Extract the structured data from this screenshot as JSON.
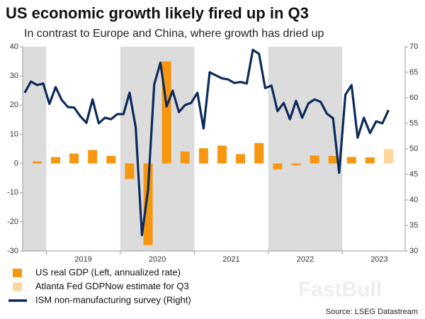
{
  "chart_data": {
    "type": "combo",
    "title": "US economic growth likely fired up in Q3",
    "subtitle": "In contrast to Europe and China, where growth has dried up",
    "source": "Source: LSEG Datastream",
    "watermark": "FastBull",
    "xlim": [
      2018.68,
      2023.85
    ],
    "xticks": [
      {
        "value": 2019,
        "label": "2019"
      },
      {
        "value": 2020,
        "label": "2020"
      },
      {
        "value": 2021,
        "label": "2021"
      },
      {
        "value": 2022,
        "label": "2022"
      },
      {
        "value": 2023,
        "label": "2023"
      }
    ],
    "ylim": [
      -30,
      40
    ],
    "yticks": [
      -30,
      -20,
      -10,
      0,
      10,
      20,
      30,
      40
    ],
    "y2lim": [
      30,
      70
    ],
    "y2ticks": [
      30,
      35,
      40,
      45,
      50,
      55,
      60,
      65,
      70
    ],
    "shading": "#dcdcdc",
    "series": [
      {
        "name": "US real GDP (Left, annualized rate)",
        "type": "bar",
        "color": "#f7960f",
        "x": [
          2018.875,
          2019.125,
          2019.375,
          2019.625,
          2019.875,
          2020.125,
          2020.375,
          2020.625,
          2020.875,
          2021.125,
          2021.375,
          2021.625,
          2021.875,
          2022.125,
          2022.375,
          2022.625,
          2022.875,
          2023.125,
          2023.375
        ],
        "values": [
          0.7,
          2.2,
          3.4,
          4.6,
          2.6,
          -5.3,
          -28.0,
          35.0,
          4.1,
          5.2,
          6.1,
          3.2,
          7.0,
          -2.0,
          -0.6,
          2.7,
          2.6,
          2.2,
          2.1
        ]
      },
      {
        "name": "Atlanta Fed GDPNow estimate for Q3",
        "type": "bar",
        "color": "#fcd69c",
        "x": [
          2023.625
        ],
        "values": [
          4.9
        ]
      },
      {
        "name": "ISM non-manufacturing survey (Right)",
        "type": "line",
        "color": "#0c2b5c",
        "axis": "y2",
        "x": [
          2018.708,
          2018.792,
          2018.875,
          2018.958,
          2019.042,
          2019.125,
          2019.208,
          2019.292,
          2019.375,
          2019.458,
          2019.542,
          2019.625,
          2019.708,
          2019.792,
          2019.875,
          2019.958,
          2020.042,
          2020.125,
          2020.208,
          2020.292,
          2020.375,
          2020.458,
          2020.542,
          2020.625,
          2020.708,
          2020.792,
          2020.875,
          2020.958,
          2021.042,
          2021.125,
          2021.208,
          2021.292,
          2021.375,
          2021.458,
          2021.542,
          2021.625,
          2021.708,
          2021.792,
          2021.875,
          2021.958,
          2022.042,
          2022.125,
          2022.208,
          2022.292,
          2022.375,
          2022.458,
          2022.542,
          2022.625,
          2022.708,
          2022.792,
          2022.875,
          2022.958,
          2023.042,
          2023.125,
          2023.208,
          2023.292,
          2023.375,
          2023.458,
          2023.542,
          2023.625
        ],
        "values": [
          61.0,
          63.2,
          62.5,
          62.8,
          58.8,
          62.1,
          59.6,
          58.2,
          58.1,
          56.4,
          55.1,
          59.7,
          55.0,
          56.1,
          55.8,
          56.8,
          56.8,
          61.0,
          54.2,
          33.1,
          42.0,
          62.6,
          66.9,
          58.3,
          61.4,
          57.2,
          58.6,
          59.0,
          61.0,
          54.0,
          65.0,
          64.4,
          63.8,
          63.6,
          62.9,
          63.1,
          62.8,
          69.4,
          68.6,
          61.9,
          62.4,
          57.4,
          59.0,
          55.8,
          59.4,
          56.1,
          58.9,
          59.7,
          59.2,
          56.9,
          56.0,
          45.3,
          60.6,
          62.5,
          52.2,
          56.1,
          53.1,
          55.4,
          55.0,
          57.6
        ]
      }
    ]
  }
}
